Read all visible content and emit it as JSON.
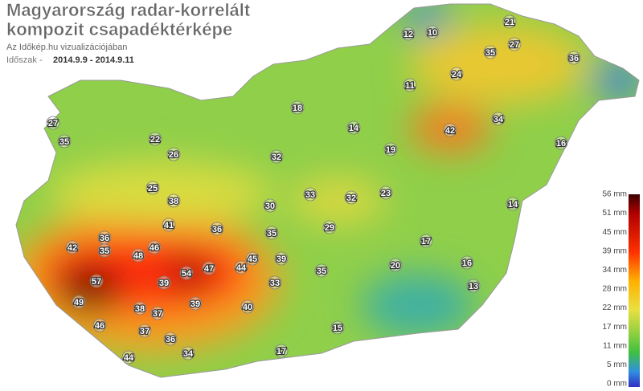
{
  "title_lines": [
    "Magyarország radar-korrelált",
    "kompozit csapadéktérképe"
  ],
  "source": "Az Időkép.hu vizualizációjában",
  "period_label": "Időszak -",
  "period": "2014.9.9 - 2014.9.11",
  "legend": {
    "labels": [
      "56 mm",
      "51 mm",
      "45 mm",
      "39 mm",
      "34 mm",
      "28 mm",
      "22 mm",
      "17 mm",
      "11 mm",
      "5 mm",
      "0 mm"
    ]
  },
  "stations": [
    57,
    54,
    49,
    48,
    47,
    46,
    46,
    45,
    44,
    44,
    42,
    42,
    41,
    40,
    39,
    39,
    39,
    38,
    38,
    37,
    37,
    36,
    36,
    36,
    36,
    35,
    35,
    35,
    35,
    35,
    34,
    34,
    33,
    33,
    32,
    32,
    30,
    29,
    27,
    27,
    26,
    25,
    24,
    23,
    22,
    21,
    20,
    18,
    17,
    16,
    16,
    15,
    14,
    13,
    12,
    11,
    10,
    17,
    19,
    14
  ]
}
